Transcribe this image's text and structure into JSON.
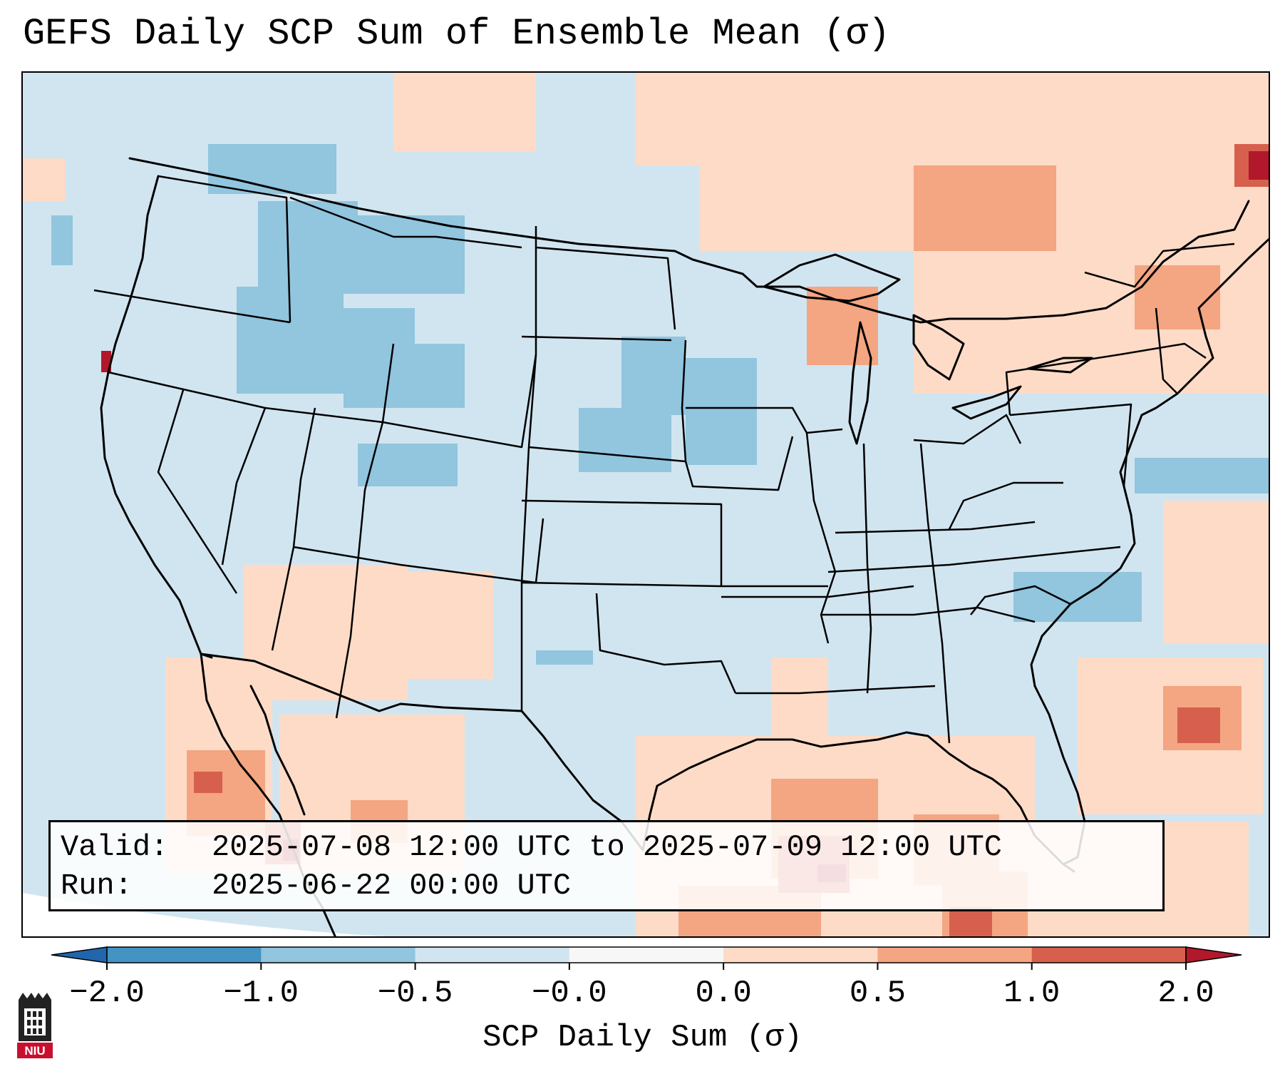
{
  "title": "GEFS Daily SCP Sum of Ensemble Mean (σ)",
  "info": {
    "valid_key": "Valid:",
    "valid_value": "2025-07-08 12:00 UTC to 2025-07-09 12:00 UTC",
    "run_key": "Run:",
    "run_value": "2025-06-22 00:00 UTC"
  },
  "colorbar": {
    "label": "SCP Daily Sum (σ)",
    "ticks": [
      "−2.0",
      "−1.0",
      "−0.5",
      "−0.0",
      "0.0",
      "0.5",
      "1.0",
      "2.0"
    ],
    "bounds": [
      -2.0,
      -1.0,
      -0.5,
      0.0,
      0.0,
      0.5,
      1.0,
      2.0
    ],
    "colors": [
      "#4393c3",
      "#92c5de",
      "#d1e5f0",
      "#f7f7f7",
      "#fddbc7",
      "#f4a582",
      "#d6604d"
    ],
    "extend_low_color": "#2166ac",
    "extend_high_color": "#b2182b"
  },
  "map_colors": {
    "background_field": "#d1e5f0",
    "outside_domain": "#ffffff",
    "neg_1": "#92c5de",
    "pos_05": "#fddbc7",
    "pos_1": "#f4a582",
    "pos_2": "#d6604d",
    "pos_3": "#b2182b",
    "boundary": "#000000"
  },
  "logo": {
    "text": "NIU",
    "icon": "university-tower-icon"
  }
}
